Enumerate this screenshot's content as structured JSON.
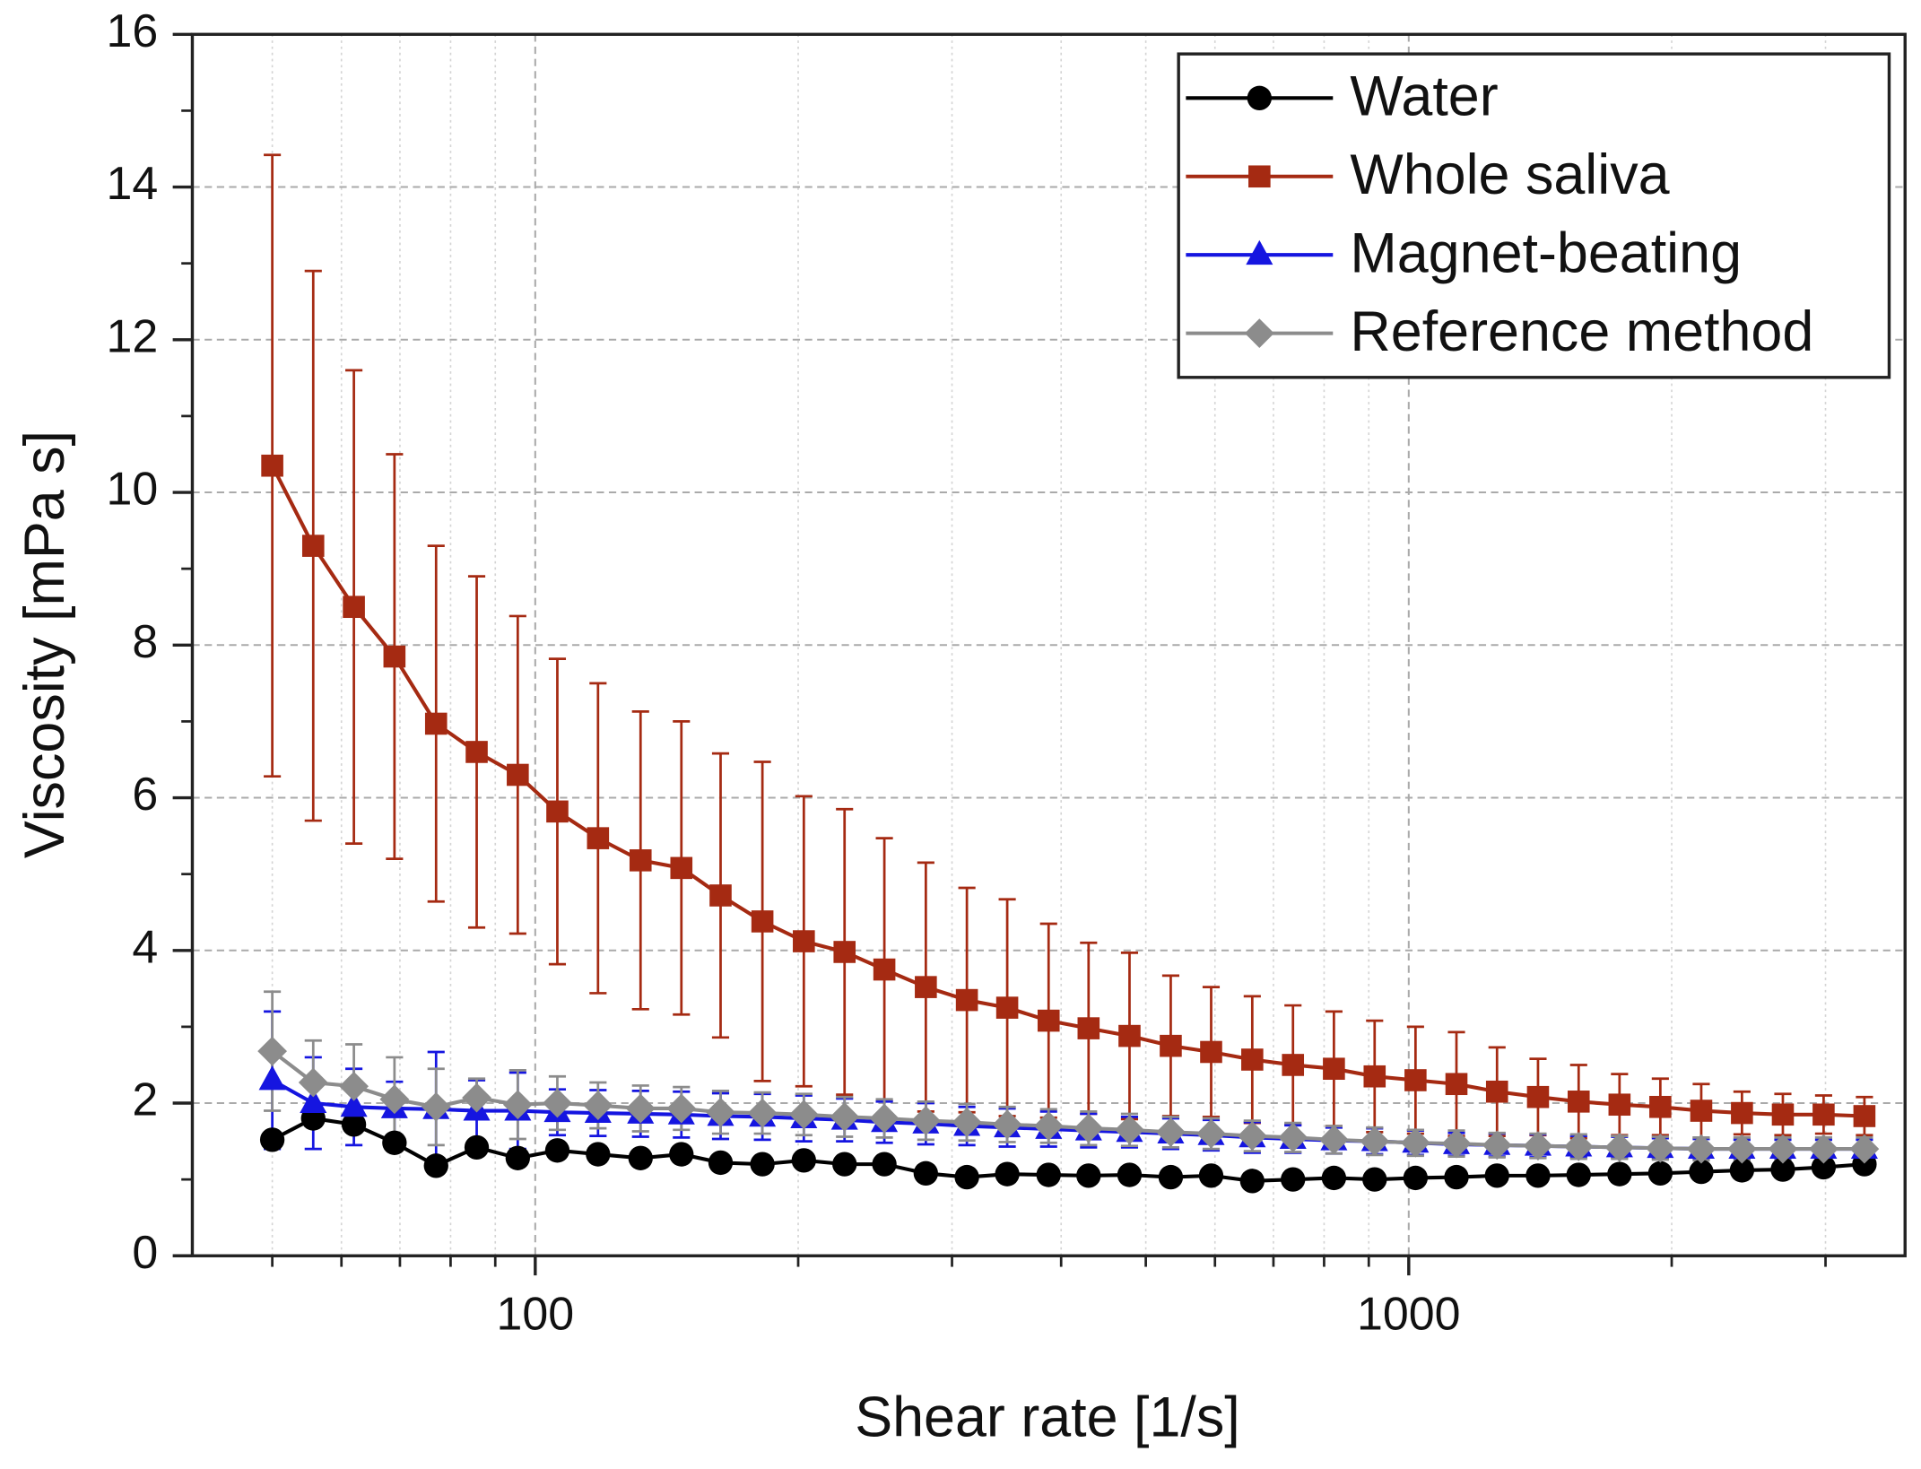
{
  "chart_data": {
    "type": "line",
    "xlabel": "Shear rate [1/s]",
    "ylabel": "Viscosity [mPa s]",
    "xscale": "log",
    "grid": true,
    "legend": "upper right",
    "xlim": [
      40.5,
      3700
    ],
    "ylim": [
      0,
      16
    ],
    "xticks": [
      100,
      1000
    ],
    "xticks_minor": [
      50,
      60,
      70,
      80,
      90,
      200,
      300,
      400,
      500,
      600,
      700,
      800,
      900,
      2000,
      3000
    ],
    "yticks": [
      0,
      2,
      4,
      6,
      8,
      10,
      12,
      14,
      16
    ],
    "yticks_minor": [
      1,
      3,
      5,
      7,
      9,
      11,
      13,
      15
    ],
    "x": [
      50,
      55.7,
      62,
      69,
      77,
      85.7,
      95.5,
      106,
      118,
      132,
      147,
      163,
      182,
      203,
      226,
      251,
      280,
      312,
      347,
      387,
      430,
      479,
      534,
      594,
      662,
      737,
      821,
      914,
      1018,
      1134,
      1262,
      1406,
      1565,
      1743,
      1941,
      2162,
      2407,
      2681,
      2985,
      3324
    ],
    "series": [
      {
        "name": "Water",
        "color": "#000000",
        "marker": "circle",
        "values": [
          1.52,
          1.8,
          1.72,
          1.48,
          1.18,
          1.42,
          1.28,
          1.38,
          1.33,
          1.28,
          1.33,
          1.22,
          1.2,
          1.25,
          1.2,
          1.2,
          1.08,
          1.03,
          1.07,
          1.06,
          1.05,
          1.06,
          1.03,
          1.05,
          0.98,
          1.0,
          1.02,
          1.0,
          1.02,
          1.03,
          1.05,
          1.05,
          1.06,
          1.07,
          1.08,
          1.1,
          1.12,
          1.13,
          1.16,
          1.2
        ]
      },
      {
        "name": "Whole saliva",
        "color": "#a52a12",
        "marker": "square",
        "values": [
          10.35,
          9.3,
          8.5,
          7.85,
          6.97,
          6.6,
          6.3,
          5.82,
          5.47,
          5.18,
          5.08,
          4.72,
          4.38,
          4.12,
          3.98,
          3.75,
          3.52,
          3.35,
          3.25,
          3.08,
          2.98,
          2.88,
          2.75,
          2.67,
          2.57,
          2.5,
          2.45,
          2.35,
          2.3,
          2.25,
          2.15,
          2.08,
          2.02,
          1.98,
          1.95,
          1.9,
          1.87,
          1.85,
          1.85,
          1.83
        ],
        "errors": [
          4.07,
          3.6,
          3.1,
          2.65,
          2.33,
          2.3,
          2.08,
          2.0,
          2.03,
          1.95,
          1.92,
          1.86,
          2.09,
          1.9,
          1.87,
          1.72,
          1.63,
          1.47,
          1.42,
          1.27,
          1.12,
          1.09,
          0.92,
          0.85,
          0.83,
          0.78,
          0.75,
          0.73,
          0.7,
          0.68,
          0.58,
          0.5,
          0.48,
          0.4,
          0.37,
          0.35,
          0.28,
          0.27,
          0.25,
          0.25
        ]
      },
      {
        "name": "Magnet-beating",
        "color": "#1515e0",
        "marker": "triangle",
        "values": [
          2.3,
          2.0,
          1.95,
          1.93,
          1.92,
          1.9,
          1.9,
          1.88,
          1.87,
          1.86,
          1.85,
          1.83,
          1.82,
          1.8,
          1.78,
          1.75,
          1.73,
          1.7,
          1.68,
          1.66,
          1.64,
          1.62,
          1.6,
          1.58,
          1.55,
          1.53,
          1.51,
          1.5,
          1.48,
          1.46,
          1.45,
          1.44,
          1.43,
          1.42,
          1.41,
          1.4,
          1.4,
          1.4,
          1.4,
          1.4
        ],
        "errors": [
          0.9,
          0.6,
          0.5,
          0.35,
          0.75,
          0.4,
          0.5,
          0.3,
          0.3,
          0.3,
          0.3,
          0.3,
          0.3,
          0.3,
          0.28,
          0.27,
          0.27,
          0.25,
          0.25,
          0.23,
          0.22,
          0.2,
          0.2,
          0.2,
          0.2,
          0.18,
          0.17,
          0.17,
          0.16,
          0.15,
          0.15,
          0.15,
          0.14,
          0.14,
          0.13,
          0.13,
          0.12,
          0.12,
          0.12,
          0.12
        ]
      },
      {
        "name": "Reference method",
        "color": "#8c8c8c",
        "marker": "diamond",
        "values": [
          2.68,
          2.27,
          2.22,
          2.05,
          1.95,
          2.07,
          1.98,
          2.0,
          1.97,
          1.93,
          1.93,
          1.88,
          1.87,
          1.85,
          1.82,
          1.8,
          1.77,
          1.75,
          1.72,
          1.7,
          1.67,
          1.65,
          1.62,
          1.6,
          1.57,
          1.55,
          1.52,
          1.5,
          1.48,
          1.47,
          1.45,
          1.44,
          1.43,
          1.42,
          1.41,
          1.4,
          1.4,
          1.4,
          1.4,
          1.4
        ],
        "errors": [
          0.78,
          0.55,
          0.55,
          0.55,
          0.5,
          0.25,
          0.45,
          0.35,
          0.3,
          0.3,
          0.28,
          0.28,
          0.27,
          0.27,
          0.26,
          0.25,
          0.25,
          0.24,
          0.23,
          0.22,
          0.22,
          0.21,
          0.2,
          0.2,
          0.2,
          0.19,
          0.18,
          0.18,
          0.17,
          0.17,
          0.16,
          0.16,
          0.16,
          0.15,
          0.15,
          0.15,
          0.15,
          0.15,
          0.15,
          0.15
        ]
      }
    ]
  }
}
